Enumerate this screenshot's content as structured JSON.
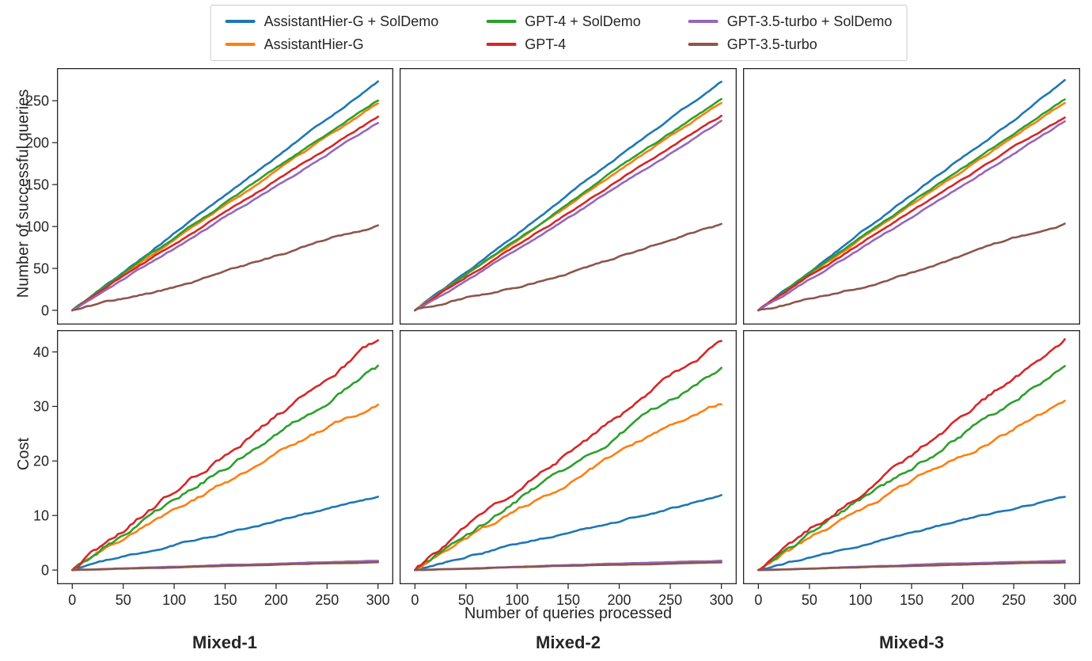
{
  "legend": {
    "entries": [
      {
        "label": "AssistantHier-G + SolDemo",
        "color": "#1f77b4"
      },
      {
        "label": "AssistantHier-G",
        "color": "#ff7f0e"
      },
      {
        "label": "GPT-4 + SolDemo",
        "color": "#2ca02c"
      },
      {
        "label": "GPT-4",
        "color": "#d62728"
      },
      {
        "label": "GPT-3.5-turbo + SolDemo",
        "color": "#9467bd"
      },
      {
        "label": "GPT-3.5-turbo",
        "color": "#8c564b"
      }
    ]
  },
  "style": {
    "axis_color": "#262626",
    "legend_border_color": "#cccccc",
    "background": "#ffffff"
  },
  "chart_data": {
    "type": "line",
    "x_label": "Number of queries processed",
    "columns": [
      "Mixed-1",
      "Mixed-2",
      "Mixed-3"
    ],
    "x_ticks": [
      0,
      50,
      100,
      150,
      200,
      250,
      300
    ],
    "xlim": [
      -15,
      315
    ],
    "grid": false,
    "legend_position": "top-center",
    "rows": [
      {
        "y_label": "Number of successful queries",
        "y_ticks": [
          0,
          50,
          100,
          150,
          200,
          250
        ],
        "ylim": [
          -17,
          289
        ],
        "subplots": [
          {
            "column": "Mixed-1",
            "x": [
              0,
              50,
              100,
              150,
              200,
              250,
              300
            ],
            "series": [
              {
                "name": "AssistantHier-G + SolDemo",
                "y": [
                  0,
                  45,
                  92,
                  137,
                  183,
                  228,
                  273
                ]
              },
              {
                "name": "AssistantHier-G",
                "y": [
                  0,
                  43,
                  84,
                  125,
                  166,
                  207,
                  247
                ]
              },
              {
                "name": "GPT-4 + SolDemo",
                "y": [
                  0,
                  44,
                  86,
                  128,
                  169,
                  210,
                  251
                ]
              },
              {
                "name": "GPT-4",
                "y": [
                  0,
                  41,
                  79,
                  117,
                  155,
                  193,
                  231
                ]
              },
              {
                "name": "GPT-3.5-turbo + SolDemo",
                "y": [
                  0,
                  37,
                  74,
                  111,
                  148,
                  186,
                  224
                ]
              },
              {
                "name": "GPT-3.5-turbo",
                "y": [
                  0,
                  14,
                  27,
                  46,
                  65,
                  85,
                  101
                ]
              }
            ]
          },
          {
            "column": "Mixed-2",
            "x": [
              0,
              50,
              100,
              150,
              200,
              250,
              300
            ],
            "series": [
              {
                "name": "AssistantHier-G + SolDemo",
                "y": [
                  0,
                  44,
                  91,
                  138,
                  184,
                  229,
                  273
                ]
              },
              {
                "name": "AssistantHier-G",
                "y": [
                  0,
                  42,
                  83,
                  124,
                  167,
                  208,
                  248
                ]
              },
              {
                "name": "GPT-4 + SolDemo",
                "y": [
                  0,
                  43,
                  85,
                  127,
                  170,
                  211,
                  252
                ]
              },
              {
                "name": "GPT-4",
                "y": [
                  0,
                  40,
                  78,
                  116,
                  156,
                  194,
                  232
                ]
              },
              {
                "name": "GPT-3.5-turbo + SolDemo",
                "y": [
                  0,
                  36,
                  72,
                  110,
                  149,
                  187,
                  225
                ]
              },
              {
                "name": "GPT-3.5-turbo",
                "y": [
                  0,
                  15,
                  28,
                  45,
                  64,
                  84,
                  102
                ]
              }
            ]
          },
          {
            "column": "Mixed-3",
            "x": [
              0,
              50,
              100,
              150,
              200,
              250,
              300
            ],
            "series": [
              {
                "name": "AssistantHier-G + SolDemo",
                "y": [
                  0,
                  45,
                  93,
                  138,
                  183,
                  227,
                  274
                ]
              },
              {
                "name": "AssistantHier-G",
                "y": [
                  0,
                  43,
                  85,
                  126,
                  167,
                  207,
                  248
                ]
              },
              {
                "name": "GPT-4 + SolDemo",
                "y": [
                  0,
                  44,
                  87,
                  129,
                  170,
                  211,
                  252
                ]
              },
              {
                "name": "GPT-4",
                "y": [
                  0,
                  41,
                  80,
                  118,
                  156,
                  194,
                  230
                ]
              },
              {
                "name": "GPT-3.5-turbo + SolDemo",
                "y": [
                  0,
                  37,
                  73,
                  111,
                  149,
                  187,
                  225
                ]
              },
              {
                "name": "GPT-3.5-turbo",
                "y": [
                  0,
                  14,
                  27,
                  45,
                  65,
                  86,
                  103
                ]
              }
            ]
          }
        ]
      },
      {
        "y_label": "Cost",
        "y_ticks": [
          0,
          10,
          20,
          30,
          40
        ],
        "ylim": [
          -2.6,
          44
        ],
        "subplots": [
          {
            "column": "Mixed-1",
            "x": [
              0,
              50,
              100,
              150,
              200,
              250,
              300
            ],
            "series": [
              {
                "name": "AssistantHier-G + SolDemo",
                "y": [
                  0,
                  2.4,
                  4.6,
                  6.8,
                  9.0,
                  11.2,
                  13.5
                ]
              },
              {
                "name": "AssistantHier-G",
                "y": [
                  0,
                  5.8,
                  11.0,
                  16.1,
                  21.3,
                  26.2,
                  30.6
                ]
              },
              {
                "name": "GPT-4 + SolDemo",
                "y": [
                  0,
                  6.4,
                  12.6,
                  18.8,
                  25.0,
                  31.0,
                  37.0
                ]
              },
              {
                "name": "GPT-4",
                "y": [
                  0,
                  7.3,
                  14.3,
                  21.2,
                  28.2,
                  35.2,
                  42.0
                ]
              },
              {
                "name": "GPT-3.5-turbo + SolDemo",
                "y": [
                  0,
                  0.3,
                  0.6,
                  0.9,
                  1.2,
                  1.45,
                  1.7
                ]
              },
              {
                "name": "GPT-3.5-turbo",
                "y": [
                  0,
                  0.25,
                  0.5,
                  0.74,
                  0.98,
                  1.2,
                  1.4
                ]
              }
            ]
          },
          {
            "column": "Mixed-2",
            "x": [
              0,
              50,
              100,
              150,
              200,
              250,
              300
            ],
            "series": [
              {
                "name": "AssistantHier-G + SolDemo",
                "y": [
                  0,
                  2.5,
                  4.7,
                  6.7,
                  8.9,
                  11.3,
                  13.6
                ]
              },
              {
                "name": "AssistantHier-G",
                "y": [
                  0,
                  5.9,
                  10.8,
                  16.0,
                  21.6,
                  26.3,
                  30.5
                ]
              },
              {
                "name": "GPT-4 + SolDemo",
                "y": [
                  0,
                  6.3,
                  12.5,
                  18.9,
                  25.1,
                  31.2,
                  37.0
                ]
              },
              {
                "name": "GPT-4",
                "y": [
                  0,
                  7.4,
                  14.5,
                  21.3,
                  28.0,
                  35.0,
                  42.0
                ]
              },
              {
                "name": "GPT-3.5-turbo + SolDemo",
                "y": [
                  0,
                  0.3,
                  0.6,
                  0.9,
                  1.2,
                  1.45,
                  1.7
                ]
              },
              {
                "name": "GPT-3.5-turbo",
                "y": [
                  0,
                  0.25,
                  0.5,
                  0.74,
                  0.98,
                  1.2,
                  1.4
                ]
              }
            ]
          },
          {
            "column": "Mixed-3",
            "x": [
              0,
              50,
              100,
              150,
              200,
              250,
              300
            ],
            "series": [
              {
                "name": "AssistantHier-G + SolDemo",
                "y": [
                  0,
                  2.4,
                  4.5,
                  6.9,
                  9.1,
                  11.2,
                  13.5
                ]
              },
              {
                "name": "AssistantHier-G",
                "y": [
                  0,
                  5.7,
                  11.1,
                  16.2,
                  21.2,
                  26.1,
                  30.6
                ]
              },
              {
                "name": "GPT-4 + SolDemo",
                "y": [
                  0,
                  6.5,
                  12.7,
                  18.7,
                  24.9,
                  31.1,
                  37.0
                ]
              },
              {
                "name": "GPT-4",
                "y": [
                  0,
                  7.2,
                  14.2,
                  21.1,
                  28.3,
                  35.1,
                  41.9
                ]
              },
              {
                "name": "GPT-3.5-turbo + SolDemo",
                "y": [
                  0,
                  0.3,
                  0.6,
                  0.9,
                  1.2,
                  1.45,
                  1.7
                ]
              },
              {
                "name": "GPT-3.5-turbo",
                "y": [
                  0,
                  0.25,
                  0.5,
                  0.74,
                  0.98,
                  1.2,
                  1.4
                ]
              }
            ]
          }
        ]
      }
    ]
  }
}
